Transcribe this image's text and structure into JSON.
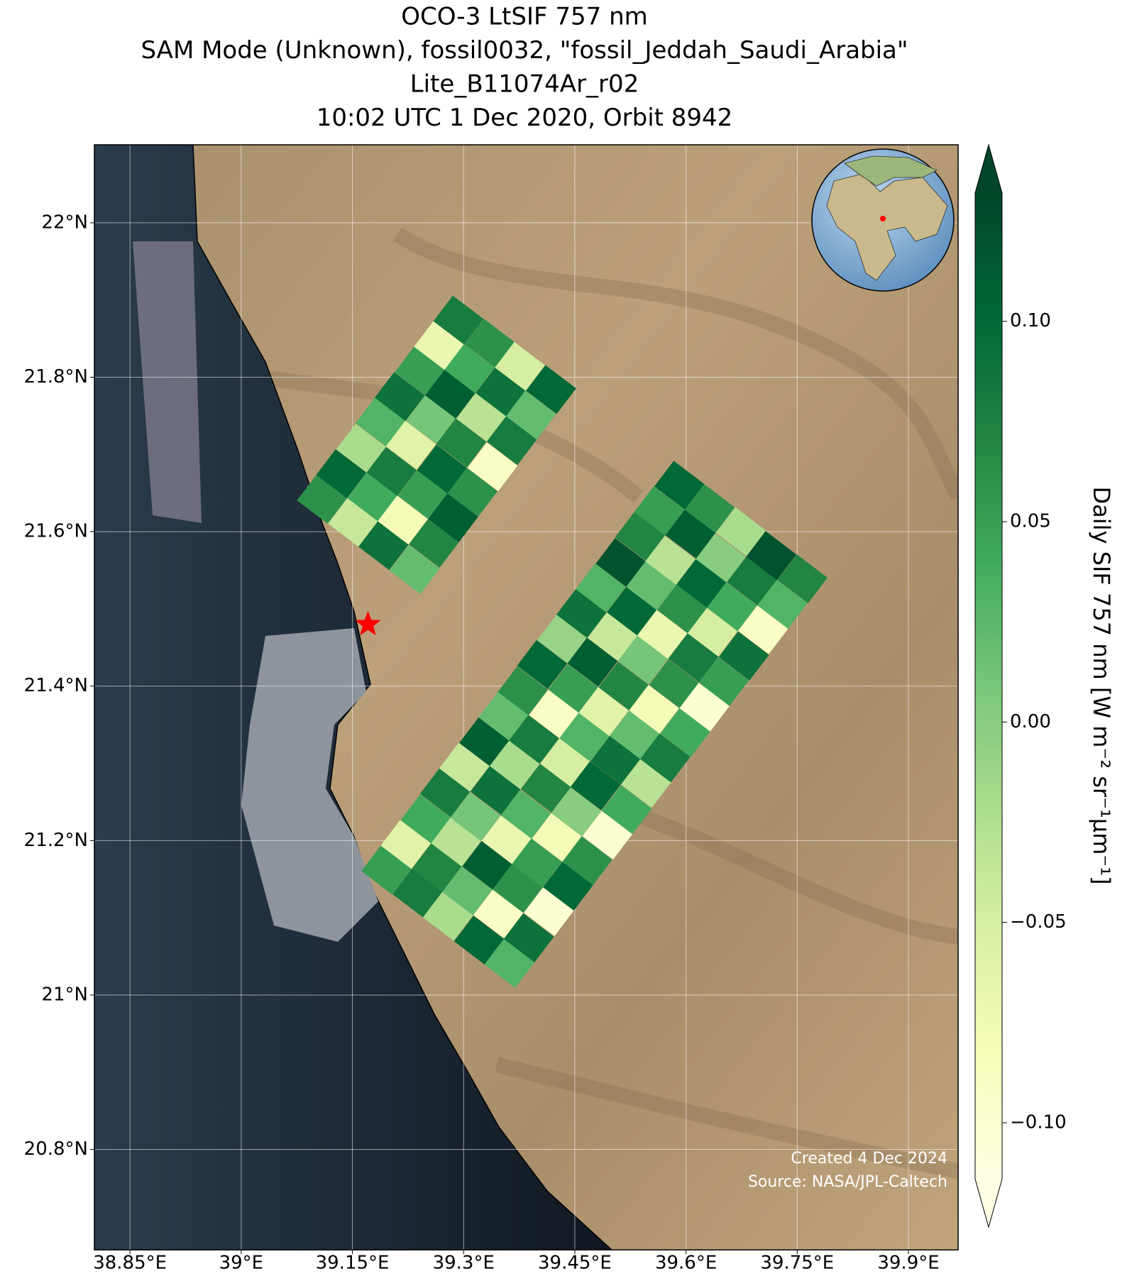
{
  "chart_data": {
    "type": "map",
    "title": [
      "OCO-3 LtSIF 757 nm",
      "SAM Mode (Unknown), fossil0032, \"fossil_Jeddah_Saudi_Arabia\"",
      "Lite_B11074Ar_r02",
      "10:02 UTC 1 Dec 2020, Orbit 8942"
    ],
    "xlim": [
      38.802,
      39.967
    ],
    "ylim": [
      20.67,
      22.101
    ],
    "xticks": [
      {
        "value": 38.85,
        "label": "38.85°E"
      },
      {
        "value": 39,
        "label": "39°E"
      },
      {
        "value": 39.15,
        "label": "39.15°E"
      },
      {
        "value": 39.3,
        "label": "39.3°E"
      },
      {
        "value": 39.45,
        "label": "39.45°E"
      },
      {
        "value": 39.6,
        "label": "39.6°E"
      },
      {
        "value": 39.75,
        "label": "39.75°E"
      },
      {
        "value": 39.9,
        "label": "39.9°E"
      }
    ],
    "yticks": [
      {
        "value": 22,
        "label": "22°N"
      },
      {
        "value": 21.8,
        "label": "21.8°N"
      },
      {
        "value": 21.6,
        "label": "21.6°N"
      },
      {
        "value": 21.4,
        "label": "21.4°N"
      },
      {
        "value": 21.2,
        "label": "21.2°N"
      },
      {
        "value": 21,
        "label": "21°N"
      },
      {
        "value": 20.8,
        "label": "20.8°N"
      }
    ],
    "grid": true,
    "colorbar": {
      "label": "Daily SIF 757 nm [W m⁻² sr⁻¹μm⁻¹]",
      "clim": [
        -0.114,
        0.132
      ],
      "ticks": [
        {
          "value": 0.1,
          "label": "0.10"
        },
        0.05,
        {
          "value": 0,
          "label": "0.00"
        },
        {
          "value": -0.05,
          "label": "−0.05"
        },
        {
          "value": -0.1,
          "label": "−0.10"
        }
      ],
      "colormap": [
        "#ffffe5",
        "#f7fcb9",
        "#d9f0a3",
        "#addd8e",
        "#78c679",
        "#41ab5d",
        "#238443",
        "#006837",
        "#004529"
      ]
    },
    "site": {
      "lon": 39.171,
      "lat": 21.48,
      "color": "#ff0000"
    },
    "footprints": {
      "lon": [
        39.196,
        39.238,
        39.279,
        39.321,
        39.362,
        39.222,
        39.264,
        39.305,
        39.347,
        39.388,
        39.249,
        39.29,
        39.332,
        39.373,
        39.415,
        39.275,
        39.316,
        39.358,
        39.399,
        39.441,
        39.301,
        39.343,
        39.384,
        39.426,
        39.467,
        39.328,
        39.369,
        39.411,
        39.452,
        39.494,
        39.354,
        39.395,
        39.437,
        39.478,
        39.52,
        39.38,
        39.422,
        39.463,
        39.505,
        39.546,
        39.406,
        39.448,
        39.489,
        39.531,
        39.572,
        39.433,
        39.474,
        39.516,
        39.557,
        39.599,
        39.459,
        39.501,
        39.542,
        39.584,
        39.625,
        39.485,
        39.527,
        39.568,
        39.61,
        39.651,
        39.512,
        39.553,
        39.595,
        39.636,
        39.678,
        39.538,
        39.579,
        39.621,
        39.662,
        39.704,
        39.564,
        39.606,
        39.647,
        39.689,
        39.73,
        39.591,
        39.632,
        39.674,
        39.715,
        39.757,
        39.109,
        39.151,
        39.192,
        39.234,
        39.135,
        39.177,
        39.218,
        39.26,
        39.162,
        39.203,
        39.245,
        39.286,
        39.188,
        39.229,
        39.271,
        39.312,
        39.214,
        39.256,
        39.297,
        39.339,
        39.241,
        39.282,
        39.324,
        39.365,
        39.267,
        39.308,
        39.35,
        39.391,
        39.293,
        39.335,
        39.376,
        39.418
      ],
      "lat": [
        21.162,
        21.132,
        21.102,
        21.071,
        21.041,
        21.195,
        21.165,
        21.135,
        21.105,
        21.074,
        21.228,
        21.198,
        21.168,
        21.138,
        21.108,
        21.262,
        21.231,
        21.201,
        21.171,
        21.141,
        21.295,
        21.265,
        21.234,
        21.204,
        21.174,
        21.328,
        21.298,
        21.268,
        21.237,
        21.207,
        21.361,
        21.331,
        21.301,
        21.271,
        21.24,
        21.394,
        21.364,
        21.334,
        21.304,
        21.274,
        21.428,
        21.397,
        21.367,
        21.337,
        21.307,
        21.461,
        21.431,
        21.4,
        21.37,
        21.34,
        21.494,
        21.464,
        21.434,
        21.403,
        21.373,
        21.527,
        21.497,
        21.467,
        21.437,
        21.406,
        21.56,
        21.53,
        21.5,
        21.47,
        21.439,
        21.594,
        21.563,
        21.533,
        21.503,
        21.473,
        21.627,
        21.597,
        21.566,
        21.536,
        21.506,
        21.66,
        21.63,
        21.6,
        21.569,
        21.539,
        21.642,
        21.612,
        21.582,
        21.551,
        21.675,
        21.645,
        21.615,
        21.585,
        21.708,
        21.678,
        21.648,
        21.618,
        21.742,
        21.712,
        21.681,
        21.651,
        21.775,
        21.745,
        21.715,
        21.684,
        21.808,
        21.778,
        21.748,
        21.718,
        21.841,
        21.811,
        21.781,
        21.751,
        21.874,
        21.844,
        21.814,
        21.784
      ],
      "values": [
        0.05,
        0.08,
        -0.02,
        0.1,
        0.03,
        -0.06,
        0.07,
        0.02,
        -0.09,
        0.09,
        0.04,
        -0.03,
        0.11,
        0.06,
        -0.1,
        0.08,
        0.01,
        -0.07,
        0.05,
        0.1,
        -0.04,
        0.09,
        0.03,
        -0.08,
        0.06,
        0.11,
        -0.02,
        0.07,
        0.0,
        -0.1,
        0.02,
        0.08,
        -0.05,
        0.1,
        0.04,
        0.06,
        -0.09,
        0.03,
        0.09,
        -0.03,
        0.1,
        0.05,
        -0.06,
        0.02,
        0.08,
        -0.01,
        0.11,
        0.07,
        -0.08,
        0.04,
        0.09,
        -0.04,
        0.01,
        0.06,
        -0.1,
        0.03,
        0.1,
        -0.07,
        0.08,
        0.05,
        0.12,
        0.02,
        0.06,
        -0.05,
        0.09,
        0.07,
        -0.03,
        0.1,
        0.04,
        -0.09,
        0.05,
        0.11,
        0.0,
        0.08,
        0.03,
        0.1,
        0.06,
        -0.02,
        0.12,
        0.07,
        0.06,
        -0.04,
        0.09,
        0.02,
        0.1,
        0.04,
        -0.08,
        0.07,
        -0.02,
        0.08,
        0.05,
        0.11,
        0.03,
        -0.06,
        0.1,
        0.06,
        0.09,
        0.01,
        0.07,
        -0.09,
        0.05,
        0.11,
        -0.03,
        0.08,
        -0.07,
        0.04,
        0.09,
        0.02,
        0.08,
        0.06,
        -0.05,
        0.1
      ]
    },
    "credits": [
      "Created 4 Dec 2024",
      "Source: NASA/JPL-Caltech"
    ]
  }
}
